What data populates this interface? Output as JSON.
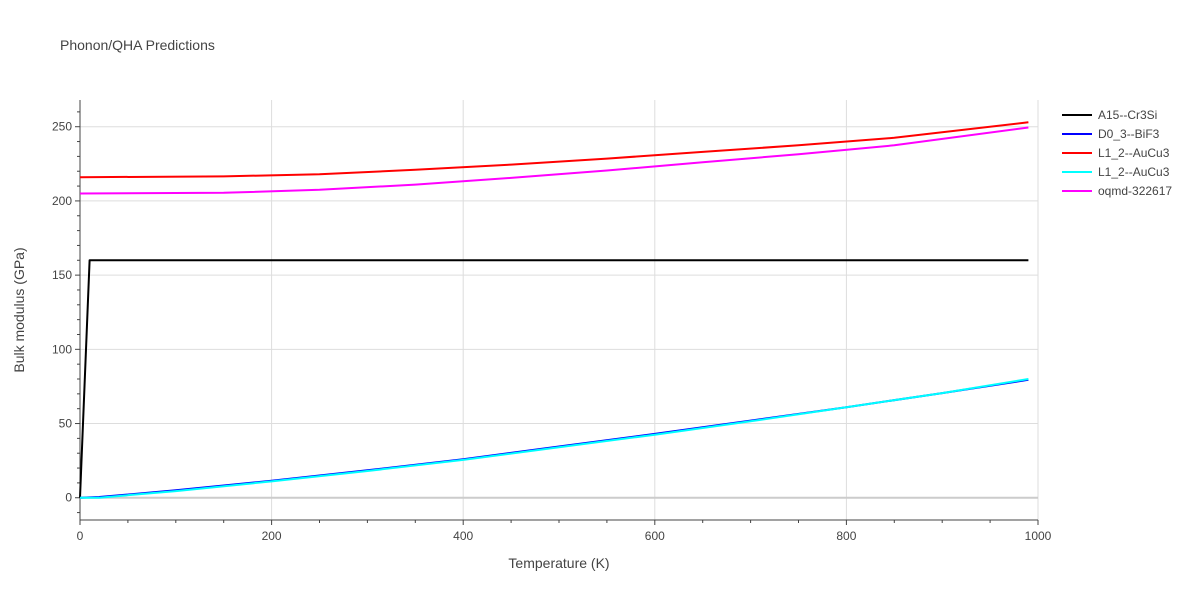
{
  "chart_data": {
    "type": "line",
    "title": "Phonon/QHA Predictions",
    "xlabel": "Temperature (K)",
    "ylabel": "Bulk modulus (GPa)",
    "xlim": [
      0,
      1000
    ],
    "ylim": [
      -15,
      268
    ],
    "xticks": [
      0,
      200,
      400,
      600,
      800,
      1000
    ],
    "yticks": [
      0,
      50,
      100,
      150,
      200,
      250
    ],
    "grid": true,
    "legend_position": "top-right",
    "series": [
      {
        "name": "A15--Cr3Si",
        "color": "#000000",
        "x": [
          0,
          10,
          100,
          200,
          400,
          600,
          800,
          990
        ],
        "y": [
          0,
          160,
          160,
          160,
          160,
          160,
          160,
          160
        ]
      },
      {
        "name": "D0_3--BiF3",
        "color": "#0000ff",
        "x": [
          0,
          20,
          100,
          200,
          300,
          400,
          500,
          600,
          700,
          800,
          900,
          990
        ],
        "y": [
          0,
          0.5,
          5,
          11.5,
          18.5,
          26,
          34.5,
          43,
          52,
          61,
          70.5,
          79.5
        ]
      },
      {
        "name": "L1_2--AuCu3",
        "color": "#ff0000",
        "x": [
          0,
          150,
          250,
          350,
          450,
          550,
          650,
          750,
          850,
          990
        ],
        "y": [
          216,
          216.5,
          218,
          221,
          224.5,
          228.5,
          233,
          237.5,
          242.5,
          253
        ]
      },
      {
        "name": "L1_2--AuCu3",
        "color": "#00ffff",
        "x": [
          0,
          20,
          100,
          200,
          300,
          400,
          500,
          600,
          700,
          800,
          900,
          990
        ],
        "y": [
          0,
          0,
          4.5,
          11,
          18,
          25.5,
          34,
          42.5,
          51.5,
          61,
          70.5,
          80
        ]
      },
      {
        "name": "oqmd-322617",
        "color": "#ff00ff",
        "x": [
          0,
          150,
          250,
          350,
          450,
          550,
          650,
          750,
          850,
          990
        ],
        "y": [
          205,
          205.5,
          207.5,
          211,
          215.5,
          220.5,
          226,
          231.5,
          237.5,
          249.5
        ]
      }
    ]
  }
}
